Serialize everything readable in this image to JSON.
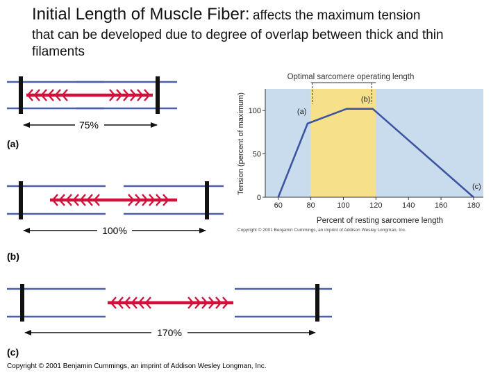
{
  "slide": {
    "title_main": "Initial Length of Muscle Fiber:",
    "title_rest_1": "affects the maximum tension",
    "title_rest_2": "that can be developed due to degree of overlap between thick and thin filaments"
  },
  "sarcomeres": [
    {
      "label": "(a)",
      "length_text": "75%"
    },
    {
      "label": "(b)",
      "length_text": "100%"
    },
    {
      "label": "(c)",
      "length_text": "170%"
    }
  ],
  "footer_copyright": "Copyright © 2001 Benjamin Cummings, an imprint of Addison Wesley Longman, Inc.",
  "colors": {
    "thick": "#d0103a",
    "thin": "#4a5fa8",
    "zline": "#111111",
    "plot_bg": "#c9dcee",
    "optimal_band": "#f7e08a",
    "curve": "#3d55a0"
  },
  "chart_data": {
    "type": "line",
    "title": "Optimal sarcomere operating length",
    "xlabel": "Percent of resting sarcomere length",
    "ylabel": "Tension (percent of maximum)",
    "x_ticks": [
      60,
      80,
      100,
      120,
      140,
      160,
      180
    ],
    "y_ticks": [
      0,
      50,
      100
    ],
    "xlim": [
      52,
      186
    ],
    "ylim": [
      0,
      125
    ],
    "optimal_range": [
      80,
      120
    ],
    "series": [
      {
        "x": [
          60,
          78,
          102,
          118,
          180
        ],
        "y": [
          0,
          85,
          102,
          102,
          0
        ]
      }
    ],
    "annotations": [
      {
        "text": "(a)",
        "x": 78,
        "y": 85
      },
      {
        "text": "(b)",
        "x": 110,
        "y": 102
      },
      {
        "text": "(c)",
        "x": 180,
        "y": 0
      }
    ],
    "copyright": "Copyright © 2001 Benjamin Cummings, an imprint of Addison Wesley Longman, Inc."
  }
}
